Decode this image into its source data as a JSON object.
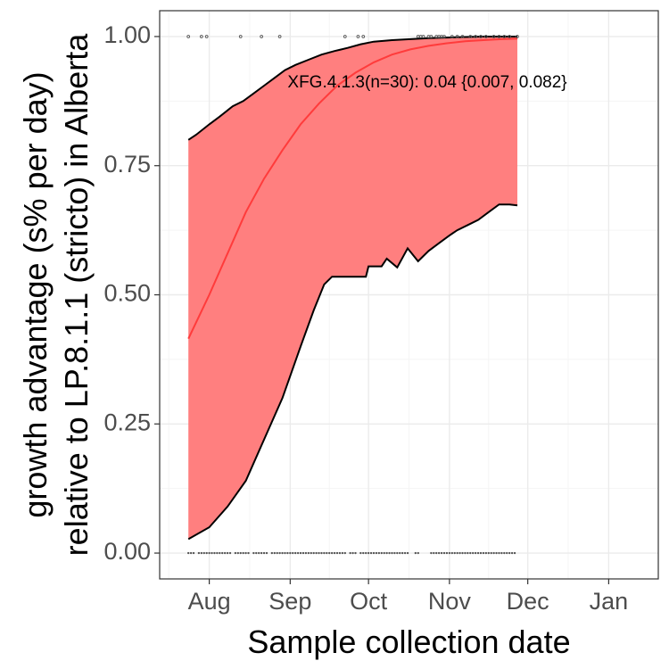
{
  "chart_data": {
    "type": "area",
    "xlabel": "Sample collection date",
    "ylabel_lines": [
      "growth advantage (s% per day)",
      "relative to LP.8.1.1 (stricto) in Alberta"
    ],
    "x_axis": {
      "scale": "date",
      "range": [
        "2025-07-13",
        "2026-01-20"
      ],
      "ticks": [
        {
          "date": "2025-08-01",
          "label": "Aug"
        },
        {
          "date": "2025-09-01",
          "label": "Sep"
        },
        {
          "date": "2025-10-01",
          "label": "Oct"
        },
        {
          "date": "2025-11-01",
          "label": "Nov"
        },
        {
          "date": "2025-12-01",
          "label": "Dec"
        },
        {
          "date": "2026-01-01",
          "label": "Jan"
        }
      ]
    },
    "y_axis": {
      "range": [
        -0.05,
        1.05
      ],
      "ticks": [
        0.0,
        0.25,
        0.5,
        0.75,
        1.0
      ],
      "tick_labels": [
        "0.00",
        "0.25",
        "0.50",
        "0.75",
        "1.00"
      ]
    },
    "grid": true,
    "colors": {
      "ribbon": "#ff7f7f",
      "fit_line": "#ff3b3b",
      "bound_line": "#000000",
      "points": "#555555",
      "panel_border": "#333333",
      "grid_major": "#ebebeb",
      "grid_minor": "#f5f5f5"
    },
    "annotation": {
      "text": "XFG.4.1.3(n=30): 0.04 {0.007, 0.082}",
      "date": "2025-08-31",
      "y": 0.91
    },
    "series": [
      {
        "role": "fit",
        "dates": [
          "2025-07-24",
          "2025-08-01",
          "2025-08-08",
          "2025-08-15",
          "2025-08-22",
          "2025-08-29",
          "2025-09-05",
          "2025-09-12",
          "2025-09-19",
          "2025-09-26",
          "2025-10-03",
          "2025-10-10",
          "2025-10-17",
          "2025-10-24",
          "2025-10-31",
          "2025-11-07",
          "2025-11-14",
          "2025-11-21",
          "2025-11-27"
        ],
        "values": [
          0.415,
          0.5,
          0.58,
          0.66,
          0.725,
          0.78,
          0.83,
          0.87,
          0.905,
          0.93,
          0.95,
          0.965,
          0.975,
          0.982,
          0.987,
          0.991,
          0.993,
          0.995,
          0.996
        ]
      },
      {
        "role": "upper",
        "dates": [
          "2025-07-24",
          "2025-07-27",
          "2025-08-01",
          "2025-08-05",
          "2025-08-10",
          "2025-08-14",
          "2025-08-18",
          "2025-08-22",
          "2025-08-26",
          "2025-08-30",
          "2025-09-03",
          "2025-09-08",
          "2025-09-13",
          "2025-09-18",
          "2025-09-23",
          "2025-09-28",
          "2025-10-03",
          "2025-10-10",
          "2025-10-17",
          "2025-10-24",
          "2025-10-31",
          "2025-11-07",
          "2025-11-14",
          "2025-11-21",
          "2025-11-27"
        ],
        "values": [
          0.8,
          0.81,
          0.83,
          0.845,
          0.865,
          0.875,
          0.89,
          0.905,
          0.92,
          0.935,
          0.945,
          0.955,
          0.965,
          0.972,
          0.978,
          0.985,
          0.99,
          0.993,
          0.995,
          0.997,
          0.998,
          0.999,
          1.0,
          1.0,
          1.0
        ]
      },
      {
        "role": "lower",
        "dates": [
          "2025-07-24",
          "2025-08-01",
          "2025-08-08",
          "2025-08-15",
          "2025-08-22",
          "2025-08-29",
          "2025-09-05",
          "2025-09-10",
          "2025-09-14",
          "2025-09-17",
          "2025-09-22",
          "2025-09-27",
          "2025-09-30",
          "2025-10-01",
          "2025-10-06",
          "2025-10-08",
          "2025-10-12",
          "2025-10-16",
          "2025-10-20",
          "2025-10-24",
          "2025-10-28",
          "2025-11-01",
          "2025-11-04",
          "2025-11-08",
          "2025-11-12",
          "2025-11-16",
          "2025-11-20",
          "2025-11-24",
          "2025-11-27"
        ],
        "values": [
          0.027,
          0.05,
          0.09,
          0.14,
          0.22,
          0.3,
          0.4,
          0.47,
          0.52,
          0.535,
          0.535,
          0.535,
          0.535,
          0.555,
          0.555,
          0.57,
          0.553,
          0.59,
          0.565,
          0.585,
          0.6,
          0.615,
          0.625,
          0.635,
          0.645,
          0.66,
          0.675,
          0.675,
          0.673
        ]
      }
    ],
    "points_bottom": {
      "y": 0.0,
      "dates": [
        "2025-07-24",
        "2025-07-25",
        "2025-07-26",
        "2025-07-28",
        "2025-07-29",
        "2025-07-30",
        "2025-07-31",
        "2025-08-01",
        "2025-08-02",
        "2025-08-03",
        "2025-08-04",
        "2025-08-05",
        "2025-08-06",
        "2025-08-07",
        "2025-08-08",
        "2025-08-09",
        "2025-08-11",
        "2025-08-12",
        "2025-08-13",
        "2025-08-14",
        "2025-08-15",
        "2025-08-16",
        "2025-08-18",
        "2025-08-19",
        "2025-08-20",
        "2025-08-21",
        "2025-08-22",
        "2025-08-23",
        "2025-08-25",
        "2025-08-26",
        "2025-08-27",
        "2025-08-28",
        "2025-08-29",
        "2025-08-30",
        "2025-08-31",
        "2025-09-01",
        "2025-09-02",
        "2025-09-03",
        "2025-09-04",
        "2025-09-05",
        "2025-09-06",
        "2025-09-07",
        "2025-09-08",
        "2025-09-09",
        "2025-09-10",
        "2025-09-11",
        "2025-09-12",
        "2025-09-13",
        "2025-09-14",
        "2025-09-15",
        "2025-09-16",
        "2025-09-17",
        "2025-09-18",
        "2025-09-19",
        "2025-09-20",
        "2025-09-21",
        "2025-09-22",
        "2025-09-24",
        "2025-09-25",
        "2025-09-26",
        "2025-09-28",
        "2025-09-29",
        "2025-09-30",
        "2025-10-01",
        "2025-10-02",
        "2025-10-03",
        "2025-10-04",
        "2025-10-05",
        "2025-10-06",
        "2025-10-07",
        "2025-10-08",
        "2025-10-09",
        "2025-10-10",
        "2025-10-11",
        "2025-10-12",
        "2025-10-13",
        "2025-10-14",
        "2025-10-15",
        "2025-10-16",
        "2025-10-19",
        "2025-10-20",
        "2025-10-25",
        "2025-10-26",
        "2025-10-27",
        "2025-10-28",
        "2025-10-29",
        "2025-10-30",
        "2025-10-31",
        "2025-11-01",
        "2025-11-02",
        "2025-11-03",
        "2025-11-04",
        "2025-11-05",
        "2025-11-06",
        "2025-11-07",
        "2025-11-08",
        "2025-11-09",
        "2025-11-10",
        "2025-11-11",
        "2025-11-12",
        "2025-11-13",
        "2025-11-14",
        "2025-11-15",
        "2025-11-16",
        "2025-11-17",
        "2025-11-18",
        "2025-11-19",
        "2025-11-20",
        "2025-11-21",
        "2025-11-22",
        "2025-11-23",
        "2025-11-24",
        "2025-11-25",
        "2025-11-26"
      ]
    },
    "points_top": {
      "y": 1.0,
      "dates": [
        "2025-07-24",
        "2025-07-29",
        "2025-07-31",
        "2025-08-13",
        "2025-08-21",
        "2025-08-28",
        "2025-09-22",
        "2025-09-27",
        "2025-09-29",
        "2025-10-20",
        "2025-10-21",
        "2025-10-22",
        "2025-10-24",
        "2025-10-25",
        "2025-10-27",
        "2025-10-28",
        "2025-10-29",
        "2025-10-30",
        "2025-11-02",
        "2025-11-04",
        "2025-11-06",
        "2025-11-09",
        "2025-11-11",
        "2025-11-13",
        "2025-11-15",
        "2025-11-18",
        "2025-11-20",
        "2025-11-22",
        "2025-11-24",
        "2025-11-27"
      ]
    }
  }
}
